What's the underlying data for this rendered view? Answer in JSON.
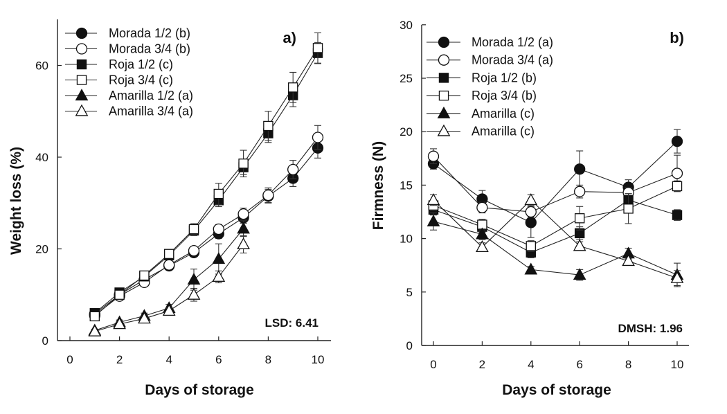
{
  "chart_data": [
    {
      "type": "line",
      "panel_label": "a)",
      "title": "",
      "xlabel": "Days of storage",
      "ylabel": "Weight loss (%)",
      "xlim": [
        0,
        10.5
      ],
      "ylim": [
        0,
        70
      ],
      "xticks": [
        0,
        2,
        4,
        6,
        8,
        10
      ],
      "yticks": [
        0,
        20,
        40,
        60
      ],
      "grid": false,
      "legend_position": "top-left",
      "annotation": "LSD: 6.41",
      "series": [
        {
          "name": "Morada 1/2 (b)",
          "marker": "circle",
          "filled": true,
          "x": [
            1,
            2,
            3,
            4,
            5,
            6,
            7,
            8,
            9,
            10
          ],
          "y": [
            5.8,
            10.0,
            13.3,
            16.3,
            19.2,
            23.3,
            26.8,
            31.5,
            35.4,
            42.0
          ],
          "err": [
            0.5,
            0.6,
            0.6,
            0.7,
            0.8,
            1.0,
            1.2,
            1.5,
            1.8,
            2.2
          ]
        },
        {
          "name": "Morada 3/4 (b)",
          "marker": "circle",
          "filled": false,
          "x": [
            1,
            2,
            3,
            4,
            5,
            6,
            7,
            8,
            9,
            10
          ],
          "y": [
            5.5,
            9.7,
            12.7,
            16.5,
            19.6,
            24.3,
            27.6,
            31.7,
            37.3,
            44.3
          ],
          "err": [
            0.5,
            0.6,
            0.6,
            0.7,
            0.8,
            1.0,
            1.3,
            1.6,
            2.0,
            2.6
          ]
        },
        {
          "name": "Roja 1/2 (c)",
          "marker": "square",
          "filled": true,
          "x": [
            1,
            2,
            3,
            4,
            5,
            6,
            7,
            8,
            9,
            10
          ],
          "y": [
            6.0,
            10.5,
            14.0,
            18.6,
            24.0,
            30.6,
            37.8,
            45.2,
            53.5,
            62.7
          ],
          "err": [
            0.5,
            0.6,
            0.7,
            0.8,
            1.1,
            1.4,
            1.6,
            2.0,
            2.5,
            2.3
          ]
        },
        {
          "name": "Roja 3/4 (c)",
          "marker": "square",
          "filled": false,
          "x": [
            1,
            2,
            3,
            4,
            5,
            6,
            7,
            8,
            9,
            10
          ],
          "y": [
            5.3,
            10.0,
            14.2,
            18.9,
            24.3,
            32.0,
            38.6,
            46.8,
            55.2,
            63.8
          ],
          "err": [
            0.5,
            0.6,
            0.7,
            0.8,
            1.2,
            2.3,
            2.9,
            3.2,
            3.3,
            3.3
          ]
        },
        {
          "name": "Amarilla 1/2 (a)",
          "marker": "triangle",
          "filled": true,
          "x": [
            1,
            2,
            3,
            4,
            5,
            6,
            7
          ],
          "y": [
            2.2,
            4.0,
            5.4,
            7.1,
            13.3,
            17.8,
            24.4
          ],
          "err": [
            0.3,
            0.5,
            0.6,
            0.8,
            2.3,
            3.3,
            1.7
          ]
        },
        {
          "name": "Amarilla 3/4 (a)",
          "marker": "triangle",
          "filled": false,
          "x": [
            1,
            2,
            3,
            4,
            5,
            6,
            7
          ],
          "y": [
            2.0,
            3.6,
            4.8,
            6.5,
            10.0,
            13.9,
            21.0
          ],
          "err": [
            0.3,
            0.5,
            0.5,
            0.6,
            1.4,
            1.3,
            1.9
          ]
        }
      ]
    },
    {
      "type": "line",
      "panel_label": "b)",
      "title": "",
      "xlabel": "Days of storage",
      "ylabel": "Firmness (N)",
      "xlim": [
        -0.5,
        10.5
      ],
      "ylim": [
        0,
        30
      ],
      "xticks": [
        0,
        2,
        4,
        6,
        8,
        10
      ],
      "yticks": [
        0,
        5,
        10,
        15,
        20,
        25,
        30
      ],
      "grid": false,
      "legend_position": "top-left",
      "annotation": "DMSH: 1.96",
      "series": [
        {
          "name": "Morada 1/2 (a)",
          "marker": "circle",
          "filled": true,
          "x": [
            0,
            2,
            4,
            6,
            8,
            10
          ],
          "y": [
            17.0,
            13.7,
            11.5,
            16.5,
            14.8,
            19.1
          ],
          "err": [
            0.5,
            0.8,
            1.4,
            1.7,
            0.7,
            1.1
          ]
        },
        {
          "name": "Morada 3/4 (a)",
          "marker": "circle",
          "filled": false,
          "x": [
            0,
            2,
            4,
            6,
            8,
            10
          ],
          "y": [
            17.7,
            12.9,
            12.5,
            14.4,
            14.3,
            16.1
          ],
          "err": [
            0.7,
            0.5,
            0.5,
            0.6,
            0.5,
            1.7
          ]
        },
        {
          "name": "Roja 1/2 (b)",
          "marker": "square",
          "filled": true,
          "x": [
            0,
            2,
            4,
            6,
            8,
            10
          ],
          "y": [
            12.7,
            11.1,
            8.7,
            10.5,
            13.6,
            12.2
          ],
          "err": [
            0.5,
            0.5,
            0.5,
            0.6,
            0.6,
            0.5
          ]
        },
        {
          "name": "Roja 3/4 (b)",
          "marker": "square",
          "filled": false,
          "x": [
            0,
            2,
            4,
            6,
            8,
            10
          ],
          "y": [
            13.1,
            11.3,
            9.3,
            11.9,
            12.8,
            14.9
          ],
          "err": [
            0.5,
            0.5,
            0.5,
            1.1,
            1.4,
            0.5
          ]
        },
        {
          "name": "Amarilla (c)",
          "marker": "triangle",
          "filled": true,
          "x": [
            0,
            2,
            4,
            6,
            8,
            10
          ],
          "y": [
            11.6,
            10.4,
            7.1,
            6.6,
            8.6,
            6.6
          ],
          "err": [
            0.8,
            0.5,
            0.3,
            0.5,
            0.5,
            1.1
          ]
        },
        {
          "name": "Amarilla (c)",
          "marker": "triangle",
          "filled": false,
          "x": [
            0,
            2,
            4,
            6,
            8,
            10
          ],
          "y": [
            13.6,
            9.2,
            13.6,
            9.3,
            7.9,
            6.3
          ],
          "err": [
            0.5,
            0.4,
            0.5,
            0.4,
            0.3,
            0.7
          ]
        }
      ]
    }
  ]
}
